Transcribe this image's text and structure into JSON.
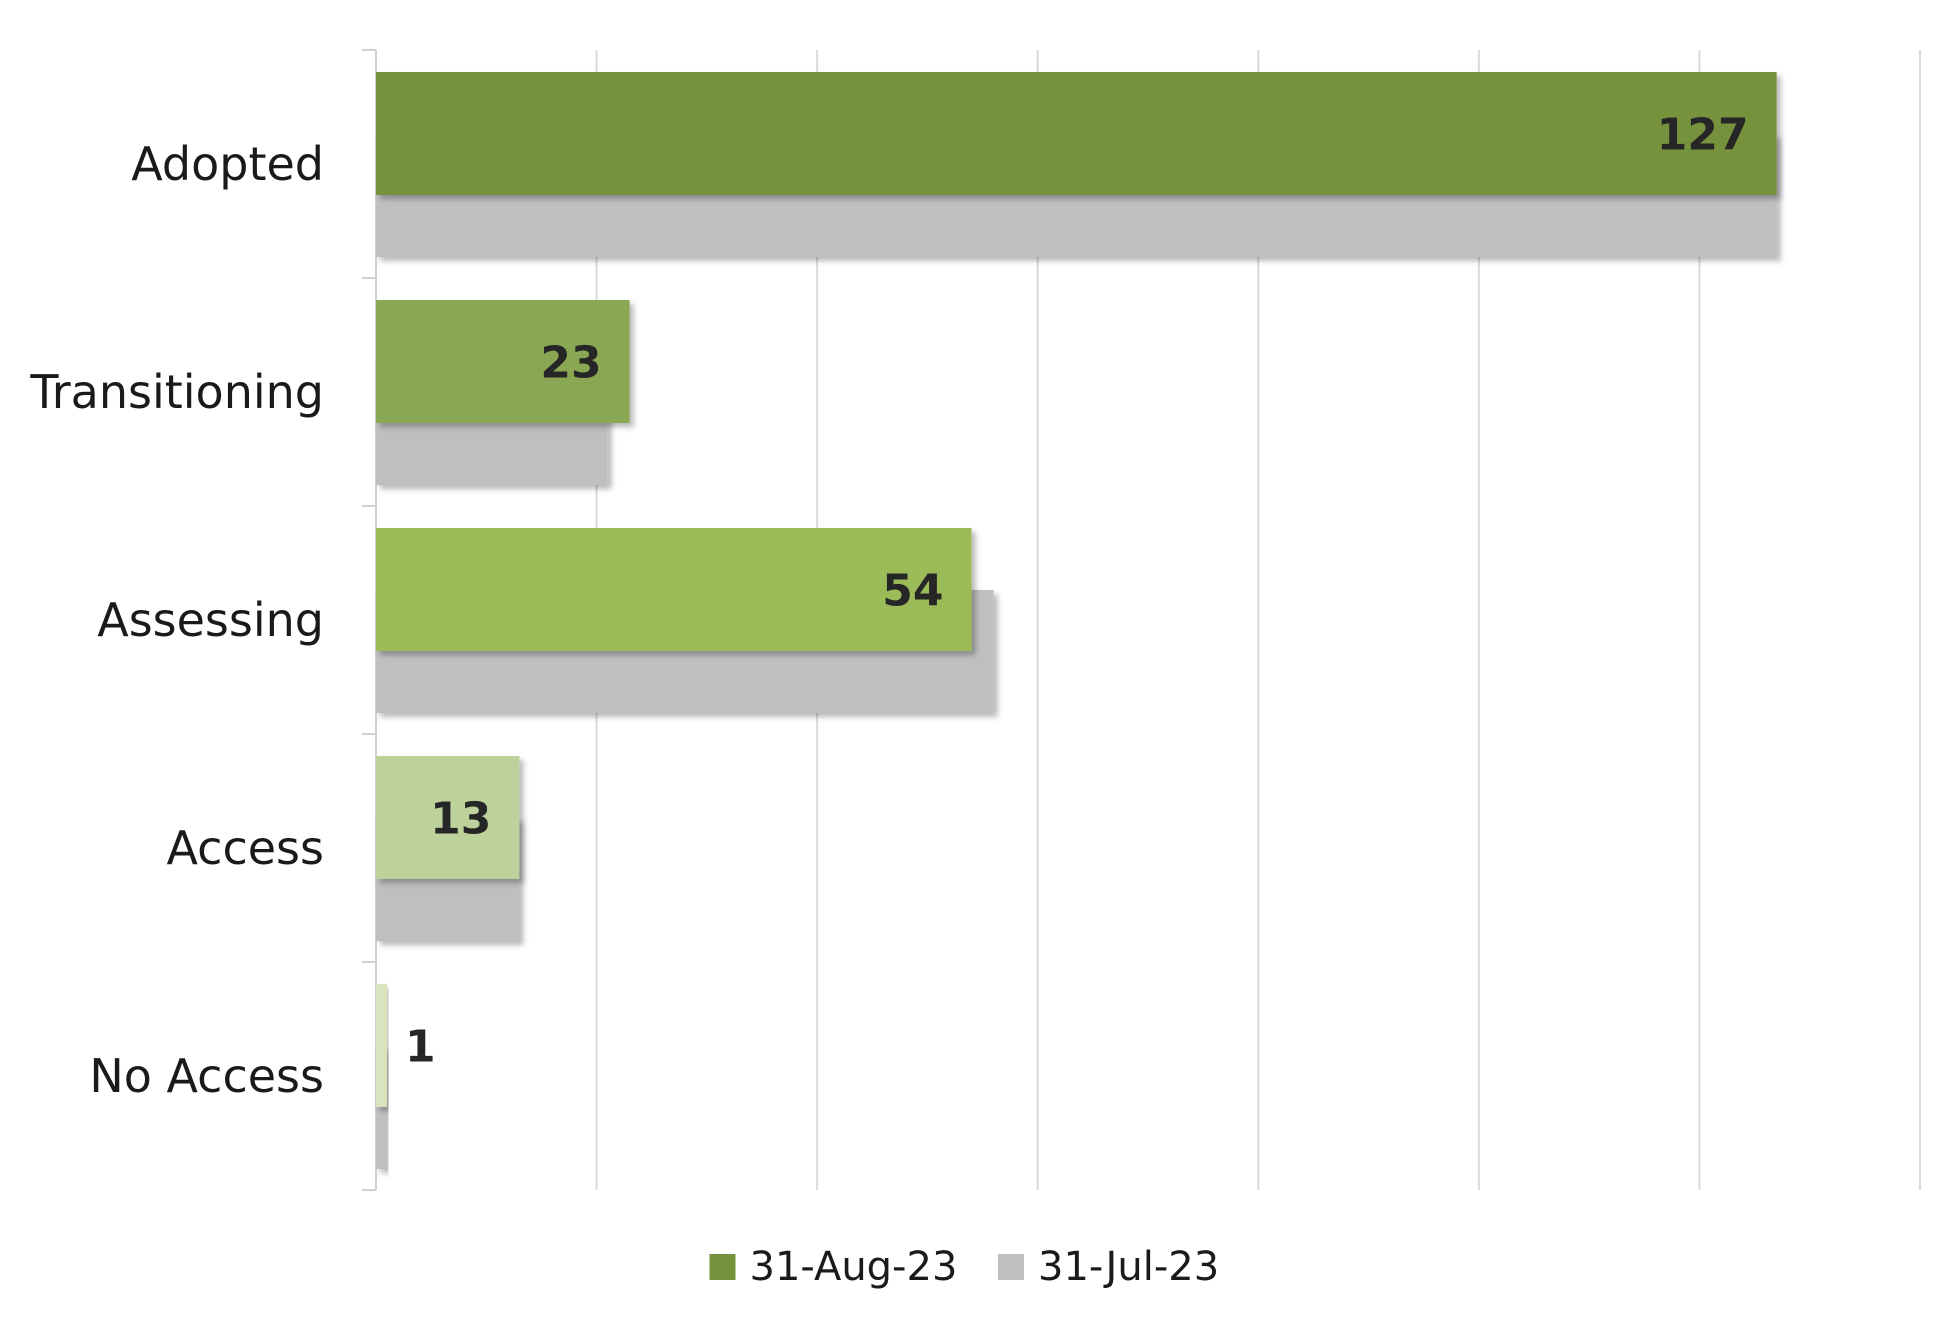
{
  "chart_data": {
    "type": "bar",
    "orientation": "horizontal",
    "categories": [
      "Adopted",
      "Transitioning",
      "Assessing",
      "Access",
      "No Access"
    ],
    "series": [
      {
        "name": "31-Aug-23",
        "values": [
          127,
          23,
          54,
          13,
          1
        ],
        "color": "#76923c",
        "bar_colors": [
          "#76923c",
          "#8aa752",
          "#9bbb59",
          "#bdd29b",
          "#d7e4bd"
        ],
        "data_labels": [
          "127",
          "23",
          "54",
          "13",
          "1"
        ]
      },
      {
        "name": "31-Jul-23",
        "values": [
          127,
          21,
          56,
          13,
          1
        ],
        "color": "#bfbfbf"
      }
    ],
    "xlim": [
      0,
      140
    ],
    "x_gridline_step": 20,
    "x_ticks_visible": false,
    "grid": true,
    "legend": "bottom-center",
    "title": "",
    "xlabel": "",
    "ylabel": ""
  }
}
